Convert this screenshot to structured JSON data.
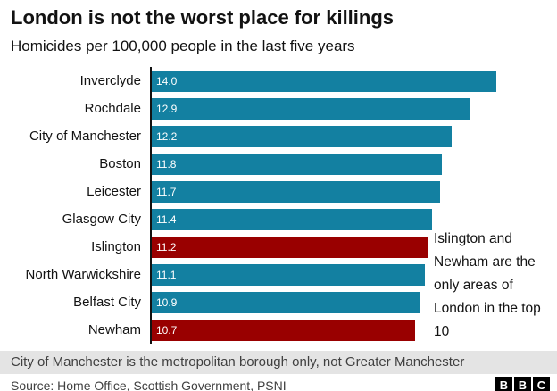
{
  "header": {
    "title": "London is not the worst place for killings",
    "subtitle": "Homicides per 100,000 people in the last five years"
  },
  "chart_data": {
    "type": "bar",
    "orientation": "horizontal",
    "title": "London is not the worst place for killings",
    "subtitle": "Homicides per 100,000 people in the last five years",
    "categories": [
      "Inverclyde",
      "Rochdale",
      "City of Manchester",
      "Boston",
      "Leicester",
      "Glasgow City",
      "Islington",
      "North Warwickshire",
      "Belfast City",
      "Newham"
    ],
    "values": [
      14.0,
      12.9,
      12.2,
      11.8,
      11.7,
      11.4,
      11.2,
      11.1,
      10.9,
      10.7
    ],
    "value_labels": [
      "14.0",
      "12.9",
      "12.2",
      "11.8",
      "11.7",
      "11.4",
      "11.2",
      "11.1",
      "10.9",
      "10.7"
    ],
    "highlighted": [
      "Islington",
      "Newham"
    ],
    "bar_color": "#1380A1",
    "highlight_color": "#990000",
    "xlim": [
      0,
      14.0
    ],
    "grid": false,
    "legend": false,
    "annotation": "Islington and Newham are the only areas of London in the top 10"
  },
  "footnote": "City of Manchester is the metropolitan borough only, not Greater Manchester",
  "source": "Source: Home Office, Scottish Government, PSNI",
  "logo": {
    "name": "bbc-logo",
    "letters": [
      "B",
      "B",
      "C"
    ]
  }
}
